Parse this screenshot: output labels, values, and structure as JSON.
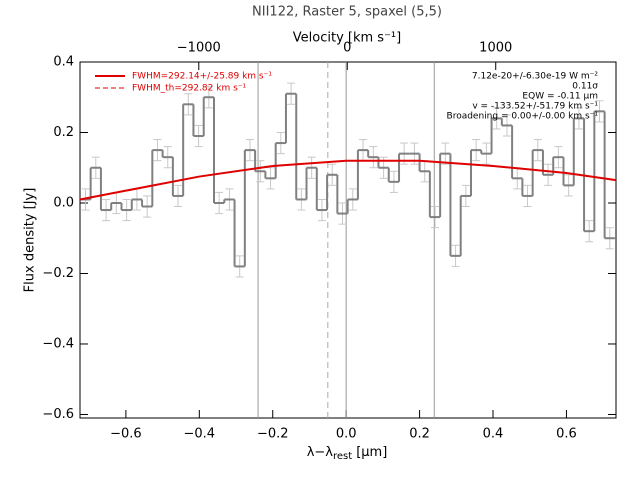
{
  "chart_data": {
    "type": "histogram",
    "title": "NII122, Raster 5, spaxel (5,5)",
    "x2label": "Velocity [km s⁻¹]",
    "xlabel_parts": [
      "λ−λ",
      "rest",
      "[μm]"
    ],
    "ylabel": "Flux density [Jy]",
    "xlim": [
      -0.725,
      0.735
    ],
    "xticks": [
      {
        "value": -0.6,
        "label": "−0.6"
      },
      {
        "value": -0.4,
        "label": "−0.4"
      },
      {
        "value": -0.2,
        "label": "−0.2"
      },
      {
        "value": 0,
        "label": "0.0"
      },
      {
        "value": 0.2,
        "label": "0.2"
      },
      {
        "value": 0.4,
        "label": "0.4"
      },
      {
        "value": 0.6,
        "label": "0.6"
      }
    ],
    "x2lim": [
      -1800,
      1810
    ],
    "x2ticks": [
      {
        "value": -1000,
        "label": "−1000"
      },
      0,
      1000
    ],
    "ylim": [
      -0.61,
      0.4
    ],
    "yticks": [
      {
        "value": -0.6,
        "label": "−0.6"
      },
      {
        "value": -0.4,
        "label": "−0.4"
      },
      {
        "value": -0.2,
        "label": "−0.2"
      },
      {
        "value": 0,
        "label": "0.0"
      },
      {
        "value": 0.2,
        "label": "0.2"
      },
      {
        "value": 0.4,
        "label": "0.4"
      }
    ],
    "bins": [
      -0.724,
      -0.696,
      -0.668,
      -0.64,
      -0.612,
      -0.584,
      -0.556,
      -0.528,
      -0.5,
      -0.472,
      -0.444,
      -0.416,
      -0.388,
      -0.36,
      -0.332,
      -0.304,
      -0.276,
      -0.248,
      -0.22,
      -0.192,
      -0.164,
      -0.136,
      -0.108,
      -0.08,
      -0.052,
      -0.024,
      0.004,
      0.032,
      0.06,
      0.088,
      0.116,
      0.144,
      0.172,
      0.2,
      0.228,
      0.256,
      0.284,
      0.312,
      0.34,
      0.368,
      0.396,
      0.424,
      0.452,
      0.48,
      0.508,
      0.536,
      0.564,
      0.592,
      0.62,
      0.648,
      0.676,
      0.704,
      0.732
    ],
    "values": [
      0.01,
      0.1,
      -0.02,
      0.0,
      -0.02,
      0.01,
      -0.01,
      0.15,
      0.13,
      0.02,
      0.28,
      0.19,
      0.3,
      0.0,
      0.01,
      -0.18,
      0.15,
      0.09,
      0.07,
      0.17,
      0.31,
      0.01,
      0.1,
      -0.02,
      0.08,
      -0.03,
      0.01,
      0.15,
      0.13,
      0.1,
      0.06,
      0.14,
      0.14,
      0.09,
      -0.04,
      0.14,
      -0.15,
      0.02,
      0.15,
      0.14,
      0.24,
      0.22,
      0.07,
      0.02,
      0.15,
      0.08,
      0.13,
      0.05,
      0.24,
      -0.08,
      0.26,
      -0.1
    ],
    "error": 0.03,
    "color": "#808080",
    "error_color": "#c8c8c8",
    "fit": {
      "name": "FWHM=292.14+/-25.89 km s⁻¹",
      "color": "#e00000",
      "x": [
        -0.725,
        -0.6,
        -0.4,
        -0.2,
        0,
        0.2,
        0.4,
        0.6,
        0.735
      ],
      "values": [
        0.01,
        0.035,
        0.075,
        0.105,
        0.12,
        0.12,
        0.105,
        0.085,
        0.065
      ]
    },
    "fit_th_name": "FWHM_th=292.82 km s⁻¹",
    "vlines": [
      -0.24,
      0,
      0.24
    ],
    "vline_dashed": -0.05,
    "annotations": [
      "7.12e-20+/-6.30e-19 W m⁻²",
      "0.11σ",
      "EQW = -0.11 μm",
      "v = -133.52+/-51.79 km s⁻¹",
      "Broadening = 0.00+/-0.00 km s⁻¹"
    ]
  }
}
